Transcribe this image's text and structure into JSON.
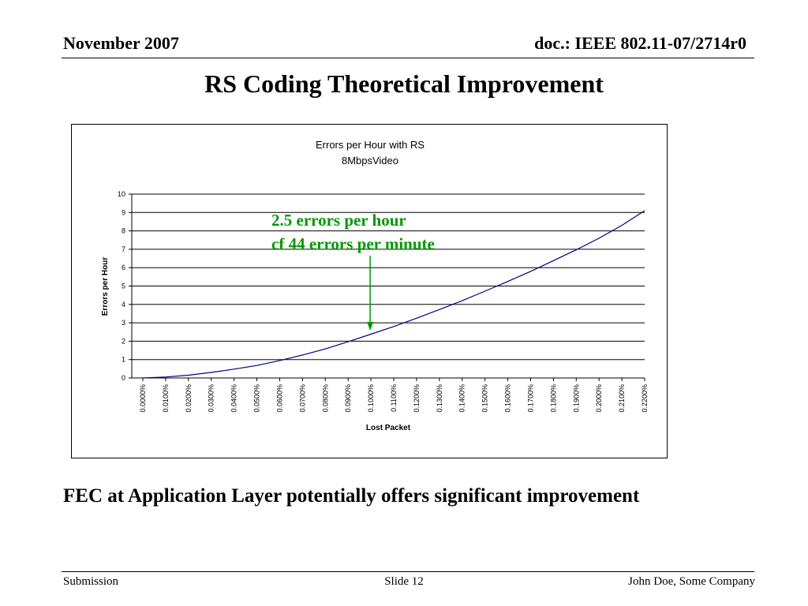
{
  "header": {
    "date": "November 2007",
    "doc": "doc.: IEEE 802.11-07/2714r0"
  },
  "slide": {
    "title": "RS Coding Theoretical Improvement",
    "subtitle": "FEC at Application Layer potentially offers significant improvement"
  },
  "annotation": {
    "line1": "2.5 errors per hour",
    "line2": "cf 44 errors per minute",
    "color": "#009900"
  },
  "footer": {
    "left": "Submission",
    "center": "Slide 12",
    "right": "John Doe, Some Company"
  },
  "chart_data": {
    "type": "line",
    "title": "Errors per Hour with RS",
    "subtitle": "8MbpsVideo",
    "xlabel": "Lost Packet",
    "ylabel": "Errors per Hour",
    "ylim": [
      0,
      10
    ],
    "yticks": [
      "0",
      "1",
      "2",
      "3",
      "4",
      "5",
      "6",
      "7",
      "8",
      "9",
      "10"
    ],
    "categories": [
      "0.0000%",
      "0.0100%",
      "0.0200%",
      "0.0300%",
      "0.0400%",
      "0.0500%",
      "0.0600%",
      "0.0700%",
      "0.0800%",
      "0.0900%",
      "0.1000%",
      "0.1100%",
      "0.1200%",
      "0.1300%",
      "0.1400%",
      "0.1500%",
      "0.1600%",
      "0.1700%",
      "0.1800%",
      "0.1900%",
      "0.2000%",
      "0.2100%",
      "0.2200%"
    ],
    "series": [
      {
        "values": [
          0,
          0.05,
          0.15,
          0.3,
          0.48,
          0.68,
          0.95,
          1.25,
          1.58,
          1.97,
          2.38,
          2.8,
          3.25,
          3.72,
          4.2,
          4.72,
          5.25,
          5.8,
          6.38,
          6.97,
          7.6,
          8.3,
          9.1
        ],
        "color": "#000080"
      }
    ],
    "grid": true,
    "legend": "none"
  }
}
